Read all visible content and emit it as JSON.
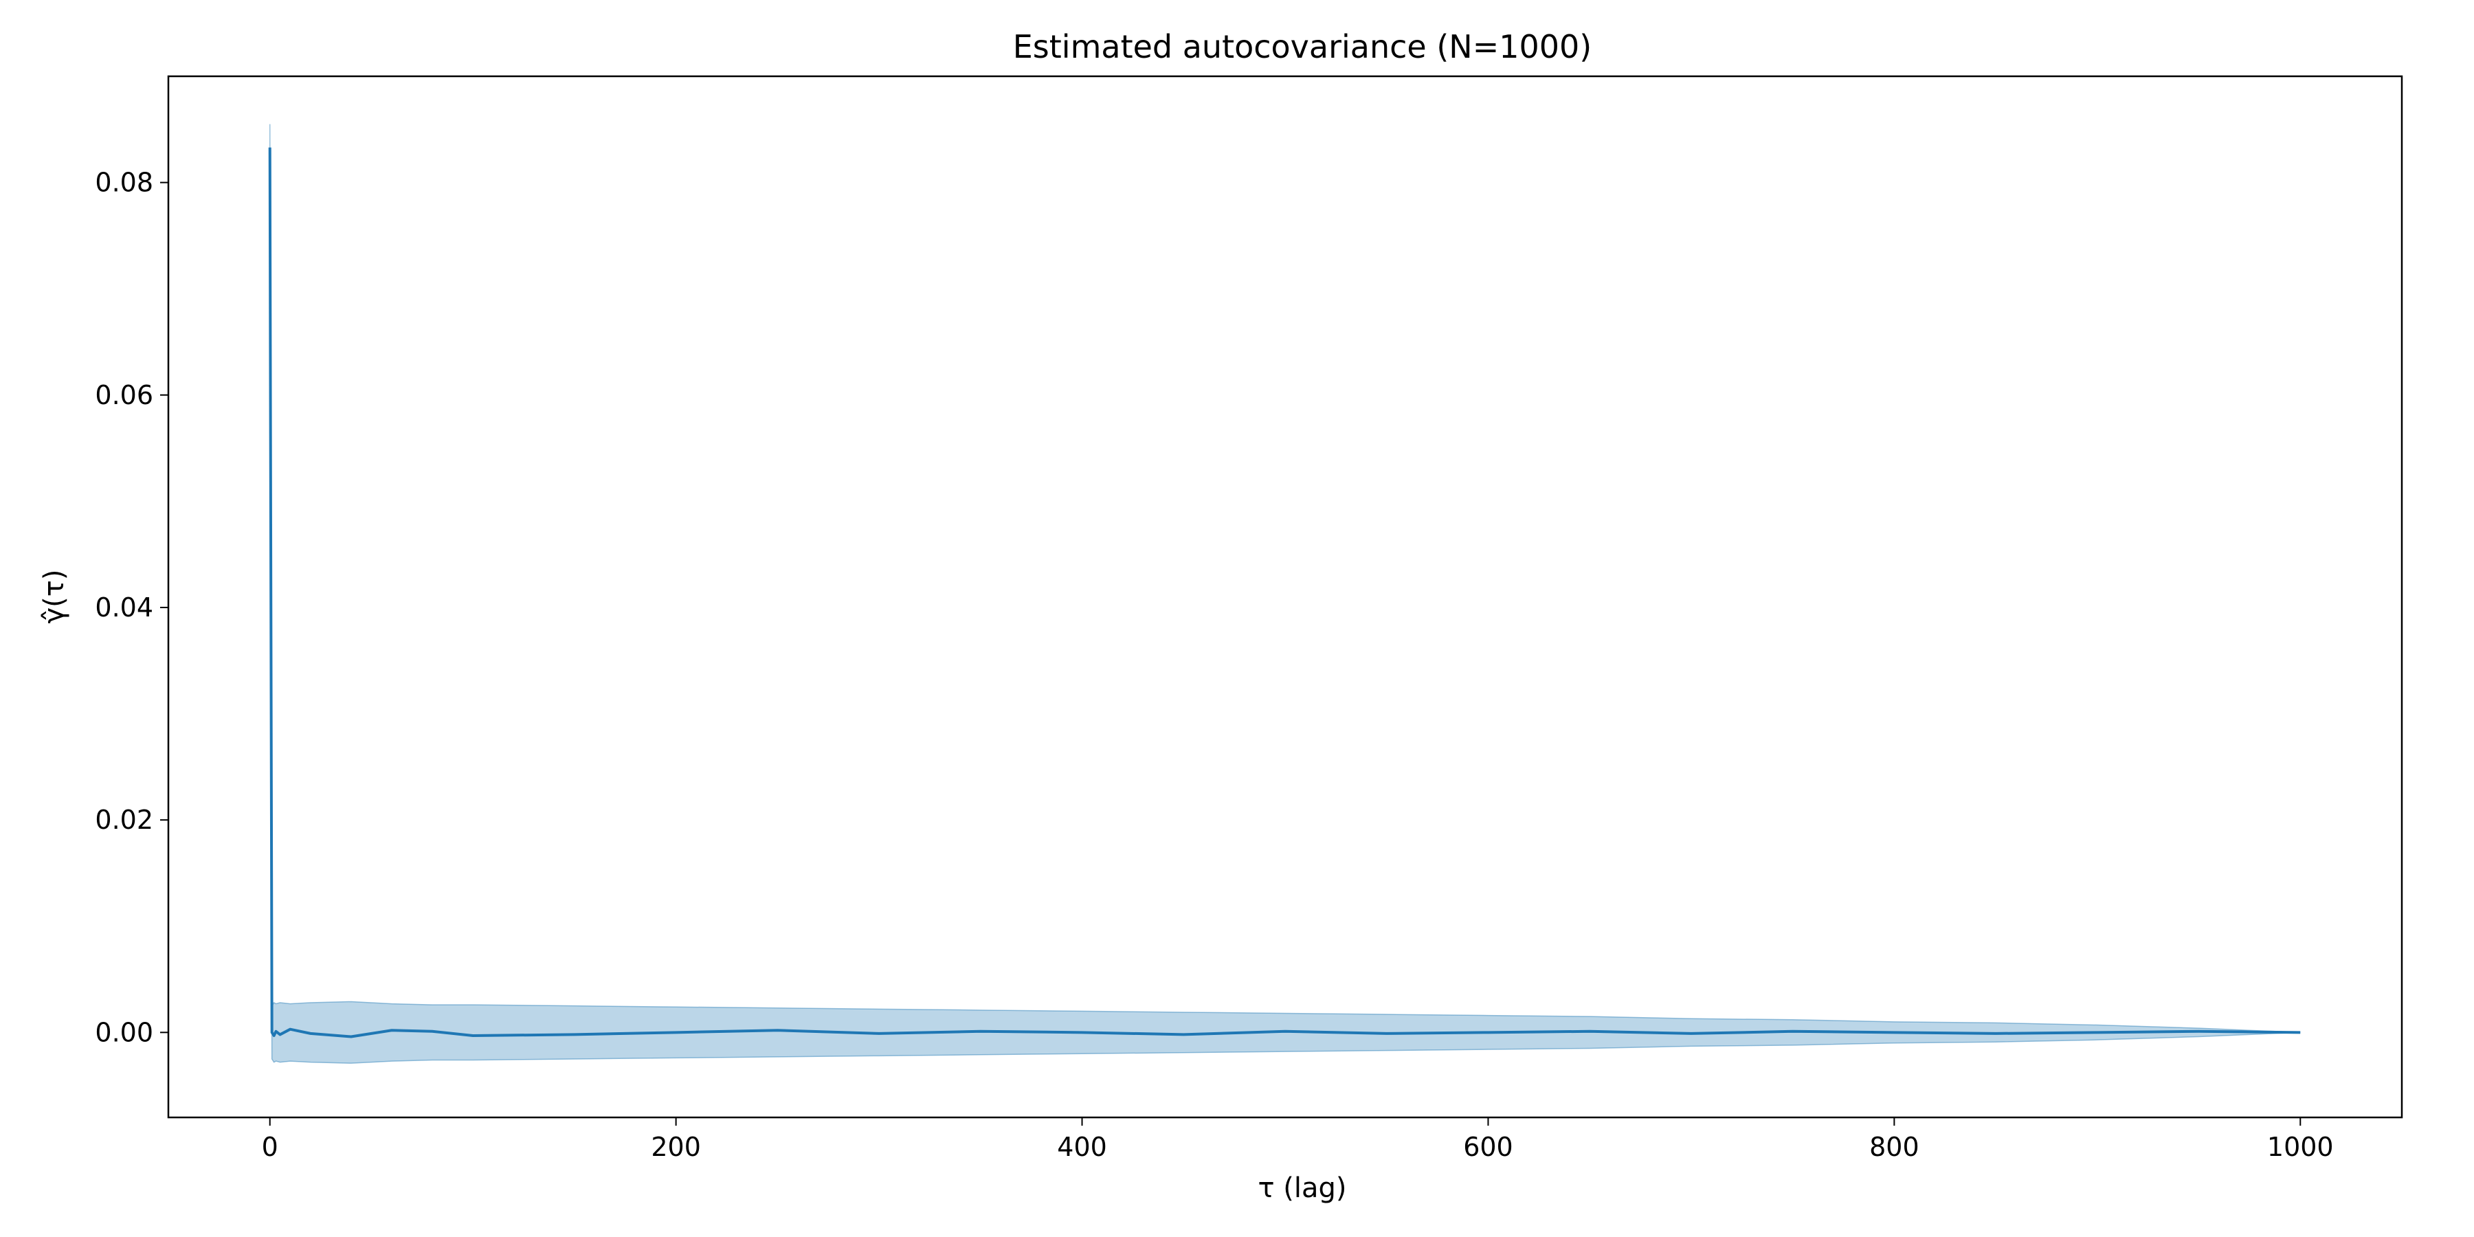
{
  "chart_data": {
    "type": "line",
    "title": "Estimated autocovariance (N=1000)",
    "xlabel": "τ (lag)",
    "ylabel": "γ̂(τ)",
    "xlim": [
      -50,
      1050
    ],
    "ylim": [
      -0.008,
      0.09
    ],
    "xticks": [
      0,
      200,
      400,
      600,
      800,
      1000
    ],
    "xtick_labels": [
      "0",
      "200",
      "400",
      "600",
      "800",
      "1000"
    ],
    "yticks": [
      0.0,
      0.02,
      0.04,
      0.06,
      0.08
    ],
    "ytick_labels": [
      "0.00",
      "0.02",
      "0.04",
      "0.06",
      "0.08"
    ],
    "grid": false,
    "legend": "none",
    "colors": {
      "line": "#1f77b4",
      "band": "#1f77b4",
      "band_opacity": 0.3
    },
    "series": [
      {
        "x": [
          0,
          1,
          2,
          3,
          5,
          10,
          20,
          40,
          60,
          80,
          100,
          150,
          200,
          250,
          300,
          350,
          400,
          450,
          500,
          550,
          600,
          650,
          700,
          750,
          800,
          850,
          900,
          950,
          1000
        ],
        "y": [
          0.0833,
          0.0,
          -0.0003,
          0.0001,
          -0.0002,
          0.0003,
          -0.0001,
          -0.0004,
          0.0002,
          0.0001,
          -0.0003,
          -0.0002,
          0.0,
          0.0002,
          -0.0001,
          0.0001,
          0.0,
          -0.0002,
          0.0001,
          -0.0001,
          0.0,
          0.0001,
          -0.0001,
          0.0001,
          0.0,
          -0.0001,
          0.0,
          0.0001,
          0.0
        ],
        "lower": [
          0.081,
          -0.0025,
          -0.0028,
          -0.0027,
          -0.0028,
          -0.0027,
          -0.0028,
          -0.0029,
          -0.0027,
          -0.0026,
          -0.0026,
          -0.0025,
          -0.0024,
          -0.0023,
          -0.0022,
          -0.0021,
          -0.002,
          -0.0019,
          -0.0018,
          -0.0017,
          -0.0016,
          -0.0015,
          -0.0013,
          -0.0012,
          -0.001,
          -0.0009,
          -0.0007,
          -0.0004,
          0.0
        ],
        "upper": [
          0.0855,
          0.0025,
          0.0028,
          0.0027,
          0.0028,
          0.0027,
          0.0028,
          0.0029,
          0.0027,
          0.0026,
          0.0026,
          0.0025,
          0.0024,
          0.0023,
          0.0022,
          0.0021,
          0.002,
          0.0019,
          0.0018,
          0.0017,
          0.0016,
          0.0015,
          0.0013,
          0.0012,
          0.001,
          0.0009,
          0.0007,
          0.0004,
          0.0
        ]
      }
    ]
  }
}
